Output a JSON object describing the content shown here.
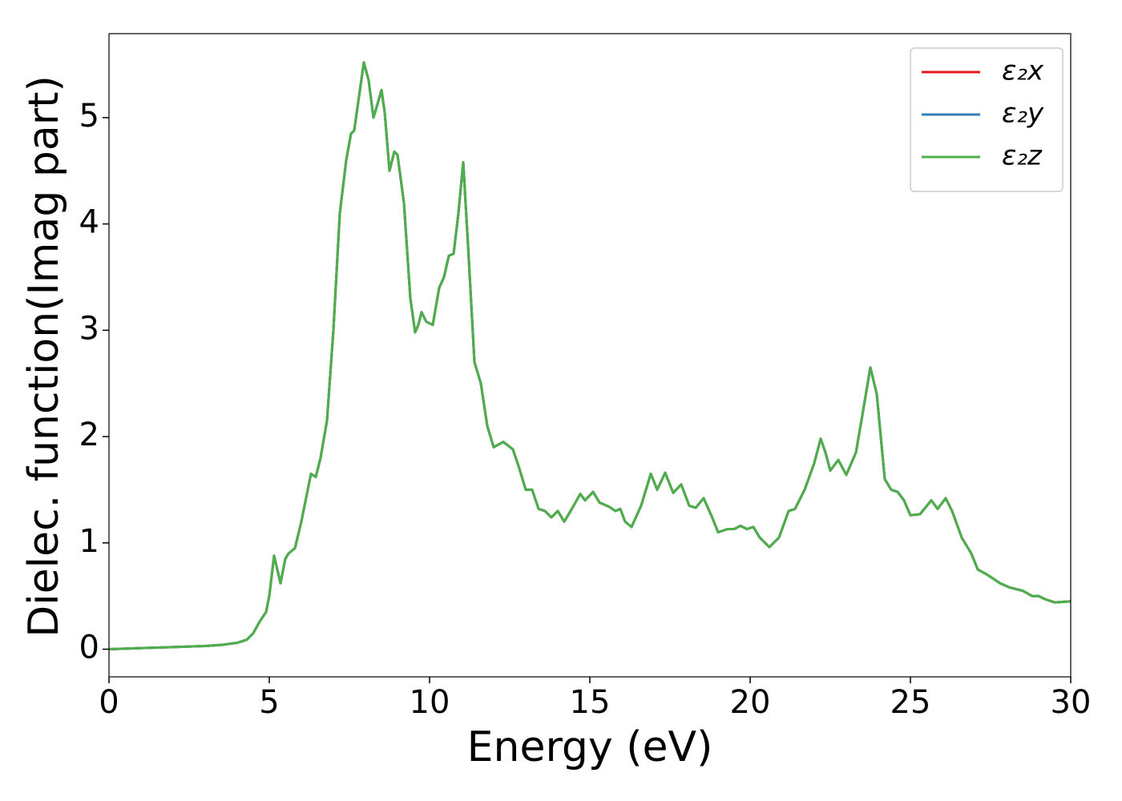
{
  "chart_data": {
    "type": "line",
    "xlabel": "Energy (eV)",
    "ylabel": "Dielec. function(Imag part)",
    "x": [
      0,
      1,
      2,
      3,
      3.5,
      4,
      4.3,
      4.5,
      4.7,
      4.9,
      5.0,
      5.15,
      5.25,
      5.35,
      5.5,
      5.6,
      5.8,
      6.0,
      6.2,
      6.3,
      6.45,
      6.6,
      6.8,
      7.0,
      7.2,
      7.4,
      7.55,
      7.65,
      7.8,
      7.95,
      8.1,
      8.25,
      8.35,
      8.5,
      8.6,
      8.75,
      8.9,
      9.0,
      9.2,
      9.4,
      9.55,
      9.65,
      9.75,
      9.9,
      10.1,
      10.3,
      10.45,
      10.6,
      10.75,
      10.9,
      11.05,
      11.2,
      11.4,
      11.6,
      11.8,
      12.0,
      12.3,
      12.6,
      12.8,
      13.0,
      13.2,
      13.4,
      13.6,
      13.8,
      14.0,
      14.2,
      14.4,
      14.7,
      14.85,
      15.1,
      15.3,
      15.6,
      15.8,
      15.95,
      16.1,
      16.3,
      16.6,
      16.9,
      17.1,
      17.35,
      17.6,
      17.85,
      18.1,
      18.3,
      18.55,
      18.8,
      19.0,
      19.3,
      19.5,
      19.7,
      19.9,
      20.1,
      20.3,
      20.6,
      20.9,
      21.2,
      21.4,
      21.7,
      22.0,
      22.2,
      22.35,
      22.5,
      22.75,
      23.0,
      23.3,
      23.5,
      23.75,
      23.95,
      24.2,
      24.4,
      24.6,
      24.8,
      25.0,
      25.3,
      25.65,
      25.85,
      26.1,
      26.3,
      26.6,
      26.9,
      27.1,
      27.4,
      27.6,
      27.8,
      28.1,
      28.5,
      28.8,
      29.0,
      29.2,
      29.5,
      30.0
    ],
    "series": [
      {
        "name": "ε₂x",
        "color": "#e41a1c",
        "values": [
          0.0,
          0.01,
          0.02,
          0.03,
          0.04,
          0.06,
          0.09,
          0.15,
          0.26,
          0.35,
          0.5,
          0.88,
          0.75,
          0.62,
          0.85,
          0.9,
          0.95,
          1.2,
          1.5,
          1.65,
          1.62,
          1.8,
          2.15,
          3.0,
          4.1,
          4.6,
          4.85,
          4.88,
          5.2,
          5.52,
          5.35,
          5.0,
          5.1,
          5.26,
          5.05,
          4.5,
          4.68,
          4.65,
          4.2,
          3.3,
          2.98,
          3.05,
          3.17,
          3.08,
          3.05,
          3.4,
          3.5,
          3.7,
          3.72,
          4.1,
          4.58,
          3.8,
          2.7,
          2.5,
          2.1,
          1.9,
          1.95,
          1.88,
          1.7,
          1.5,
          1.5,
          1.32,
          1.3,
          1.24,
          1.3,
          1.2,
          1.3,
          1.46,
          1.4,
          1.48,
          1.38,
          1.34,
          1.3,
          1.32,
          1.2,
          1.15,
          1.35,
          1.65,
          1.5,
          1.66,
          1.47,
          1.55,
          1.35,
          1.33,
          1.42,
          1.25,
          1.1,
          1.13,
          1.13,
          1.16,
          1.13,
          1.15,
          1.05,
          0.96,
          1.05,
          1.3,
          1.32,
          1.5,
          1.75,
          1.98,
          1.85,
          1.68,
          1.78,
          1.64,
          1.85,
          2.2,
          2.65,
          2.4,
          1.6,
          1.5,
          1.48,
          1.4,
          1.26,
          1.27,
          1.4,
          1.32,
          1.42,
          1.3,
          1.05,
          0.9,
          0.75,
          0.7,
          0.66,
          0.62,
          0.58,
          0.55,
          0.5,
          0.5,
          0.47,
          0.44,
          0.45
        ]
      },
      {
        "name": "ε₂y",
        "color": "#377eb8",
        "values": [
          0.0,
          0.01,
          0.02,
          0.03,
          0.04,
          0.06,
          0.09,
          0.15,
          0.26,
          0.35,
          0.5,
          0.88,
          0.75,
          0.62,
          0.85,
          0.9,
          0.95,
          1.2,
          1.5,
          1.65,
          1.62,
          1.8,
          2.15,
          3.0,
          4.1,
          4.6,
          4.85,
          4.88,
          5.2,
          5.52,
          5.35,
          5.0,
          5.1,
          5.26,
          5.05,
          4.5,
          4.68,
          4.65,
          4.2,
          3.3,
          2.98,
          3.05,
          3.17,
          3.08,
          3.05,
          3.4,
          3.5,
          3.7,
          3.72,
          4.1,
          4.58,
          3.8,
          2.7,
          2.5,
          2.1,
          1.9,
          1.95,
          1.88,
          1.7,
          1.5,
          1.5,
          1.32,
          1.3,
          1.24,
          1.3,
          1.2,
          1.3,
          1.46,
          1.4,
          1.48,
          1.38,
          1.34,
          1.3,
          1.32,
          1.2,
          1.15,
          1.35,
          1.65,
          1.5,
          1.66,
          1.47,
          1.55,
          1.35,
          1.33,
          1.42,
          1.25,
          1.1,
          1.13,
          1.13,
          1.16,
          1.13,
          1.15,
          1.05,
          0.96,
          1.05,
          1.3,
          1.32,
          1.5,
          1.75,
          1.98,
          1.85,
          1.68,
          1.78,
          1.64,
          1.85,
          2.2,
          2.65,
          2.4,
          1.6,
          1.5,
          1.48,
          1.4,
          1.26,
          1.27,
          1.4,
          1.32,
          1.42,
          1.3,
          1.05,
          0.9,
          0.75,
          0.7,
          0.66,
          0.62,
          0.58,
          0.55,
          0.5,
          0.5,
          0.47,
          0.44,
          0.45
        ]
      },
      {
        "name": "ε₂z",
        "color": "#4daf4a",
        "values": [
          0.0,
          0.01,
          0.02,
          0.03,
          0.04,
          0.06,
          0.09,
          0.15,
          0.26,
          0.35,
          0.5,
          0.88,
          0.75,
          0.62,
          0.85,
          0.9,
          0.95,
          1.2,
          1.5,
          1.65,
          1.62,
          1.8,
          2.15,
          3.0,
          4.1,
          4.6,
          4.85,
          4.88,
          5.2,
          5.52,
          5.35,
          5.0,
          5.1,
          5.26,
          5.05,
          4.5,
          4.68,
          4.65,
          4.2,
          3.3,
          2.98,
          3.05,
          3.17,
          3.08,
          3.05,
          3.4,
          3.5,
          3.7,
          3.72,
          4.1,
          4.58,
          3.8,
          2.7,
          2.5,
          2.1,
          1.9,
          1.95,
          1.88,
          1.7,
          1.5,
          1.5,
          1.32,
          1.3,
          1.24,
          1.3,
          1.2,
          1.3,
          1.46,
          1.4,
          1.48,
          1.38,
          1.34,
          1.3,
          1.32,
          1.2,
          1.15,
          1.35,
          1.65,
          1.5,
          1.66,
          1.47,
          1.55,
          1.35,
          1.33,
          1.42,
          1.25,
          1.1,
          1.13,
          1.13,
          1.16,
          1.13,
          1.15,
          1.05,
          0.96,
          1.05,
          1.3,
          1.32,
          1.5,
          1.75,
          1.98,
          1.85,
          1.68,
          1.78,
          1.64,
          1.85,
          2.2,
          2.65,
          2.4,
          1.6,
          1.5,
          1.48,
          1.4,
          1.26,
          1.27,
          1.4,
          1.32,
          1.42,
          1.3,
          1.05,
          0.9,
          0.75,
          0.7,
          0.66,
          0.62,
          0.58,
          0.55,
          0.5,
          0.5,
          0.47,
          0.44,
          0.45
        ]
      }
    ],
    "xlim": [
      0,
      30
    ],
    "xticks": [
      0,
      5,
      10,
      15,
      20,
      25,
      30
    ],
    "ylim": [
      -0.26,
      5.79
    ],
    "yticks": [
      0,
      1,
      2,
      3,
      4,
      5
    ],
    "grid": false,
    "legend": "upper right"
  }
}
